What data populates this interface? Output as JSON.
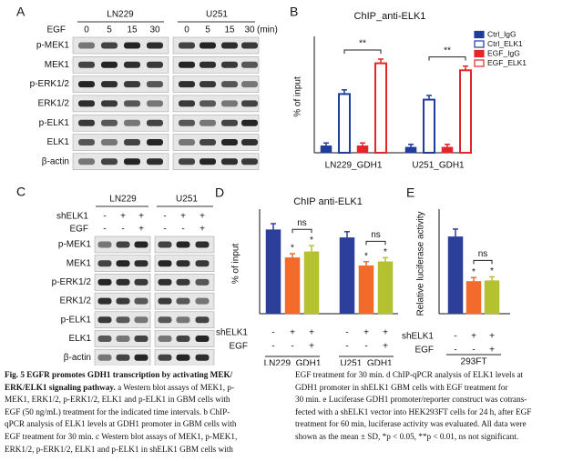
{
  "panels": {
    "a": "A",
    "b": "B",
    "c": "C",
    "d": "D",
    "e": "E"
  },
  "blot_a": {
    "treatment": "EGF",
    "unit": "(min)",
    "times": [
      "0",
      "5",
      "15",
      "30"
    ],
    "cell_lines": [
      "LN229",
      "U251"
    ],
    "rows": [
      "p-MEK1",
      "MEK1",
      "p-ERK1/2",
      "ERK1/2",
      "p-ELK1",
      "ELK1",
      "β-actin"
    ]
  },
  "blot_c": {
    "cell_lines": [
      "LN229",
      "U251"
    ],
    "conditions": [
      {
        "name": "shELK1",
        "signs": [
          "-",
          "+",
          "+"
        ]
      },
      {
        "name": "EGF",
        "signs": [
          "-",
          "-",
          "+"
        ]
      }
    ],
    "rows": [
      "p-MEK1",
      "MEK1",
      "p-ERK1/2",
      "ERK1/2",
      "p-ELK1",
      "ELK1",
      "β-actin"
    ]
  },
  "chart_data": [
    {
      "type": "bar",
      "title": "ChIP_anti-ELK1",
      "ylabel": "% of input",
      "categories": [
        "LN229_GDH1",
        "U251_GDH1"
      ],
      "ylim": [
        0,
        0.8
      ],
      "comparison": "**",
      "series": [
        {
          "name": "Ctrl_IgG",
          "color": "#1f3d99",
          "style": "filled",
          "values": [
            0.05,
            0.04
          ],
          "errors": [
            0.02,
            0.02
          ]
        },
        {
          "name": "Ctrl_ELK1",
          "color": "#1f3d99",
          "style": "outline",
          "values": [
            0.42,
            0.38
          ],
          "errors": [
            0.03,
            0.03
          ]
        },
        {
          "name": "EGF_IgG",
          "color": "#e4262a",
          "style": "filled",
          "values": [
            0.05,
            0.04
          ],
          "errors": [
            0.02,
            0.02
          ]
        },
        {
          "name": "EGF_ELK1",
          "color": "#e4262a",
          "style": "outline",
          "values": [
            0.64,
            0.59
          ],
          "errors": [
            0.03,
            0.03
          ]
        }
      ]
    },
    {
      "type": "bar",
      "title": "ChIP anti-ELK1",
      "ylabel": "% of input",
      "categories": [
        "LN229_GDH1",
        "U251_GDH1"
      ],
      "ylim": [
        0,
        0.5
      ],
      "comparison": "ns",
      "conditions": [
        {
          "name": "shELK1",
          "signs": [
            "-",
            "+",
            "+"
          ]
        },
        {
          "name": "EGF",
          "signs": [
            "-",
            "-",
            "+"
          ]
        }
      ],
      "series": [
        {
          "color": "#2b3f9b",
          "values": [
            0.42,
            0.38
          ],
          "errors": [
            0.03,
            0.03
          ]
        },
        {
          "color": "#f26b2a",
          "values": [
            0.28,
            0.24
          ],
          "errors": [
            0.02,
            0.02
          ],
          "mark": "*"
        },
        {
          "color": "#b5c230",
          "values": [
            0.31,
            0.26
          ],
          "errors": [
            0.03,
            0.02
          ],
          "mark": "*"
        }
      ]
    },
    {
      "type": "bar",
      "ylabel": "Relative luciferase activity",
      "categories": [
        "293FT"
      ],
      "ylim": [
        0,
        1.3
      ],
      "comparison": "ns",
      "conditions": [
        {
          "name": "shELK1",
          "signs": [
            "-",
            "+",
            "+"
          ]
        },
        {
          "name": "EGF",
          "signs": [
            "-",
            "-",
            "+"
          ]
        }
      ],
      "series": [
        {
          "color": "#2b3f9b",
          "values": [
            1.0
          ],
          "errors": [
            0.1
          ]
        },
        {
          "color": "#f26b2a",
          "values": [
            0.42
          ],
          "errors": [
            0.05
          ],
          "mark": "*"
        },
        {
          "color": "#b5c230",
          "values": [
            0.43
          ],
          "errors": [
            0.05
          ],
          "mark": "*"
        }
      ]
    }
  ],
  "caption": {
    "bold": [
      "Fig. 5 EGFR promotes GDH1 transcription by activating MEK/",
      "ERK/ELK1 signaling pathway."
    ],
    "left": [
      " a Western blot assays of MEK1, p-",
      "MEK1, ERK1/2, p-ERK1/2, ELK1 and p-ELK1 in GBM cells with",
      "EGF (50 ng/mL) treatment for the indicated time intervals. b ChIP-",
      "qPCR analysis of ELK1 levels at GDH1 promoter in GBM cells with",
      "EGF treatment for 30 min. c Western blot assays of MEK1, p-MEK1,",
      "ERK1/2, p-ERK1/2, ELK1 and p-ELK1 in shELK1 GBM cells with"
    ],
    "right": [
      "EGF treatment for 30 min. d ChIP-qPCR analysis of ELK1 levels at",
      "GDH1 promoter in shELK1 GBM cells with EGF treatment for",
      "30 min. e Luciferase GDH1 promoter/reporter construct was cotrans-",
      "fected with a shELK1 vector into HEK293FT cells for 24 h, after EGF",
      "treatment for 60 min, luciferase activity was evaluated. All data were",
      "shown as the mean ± SD, *p < 0.05, **p < 0.01, ns not significant."
    ]
  }
}
